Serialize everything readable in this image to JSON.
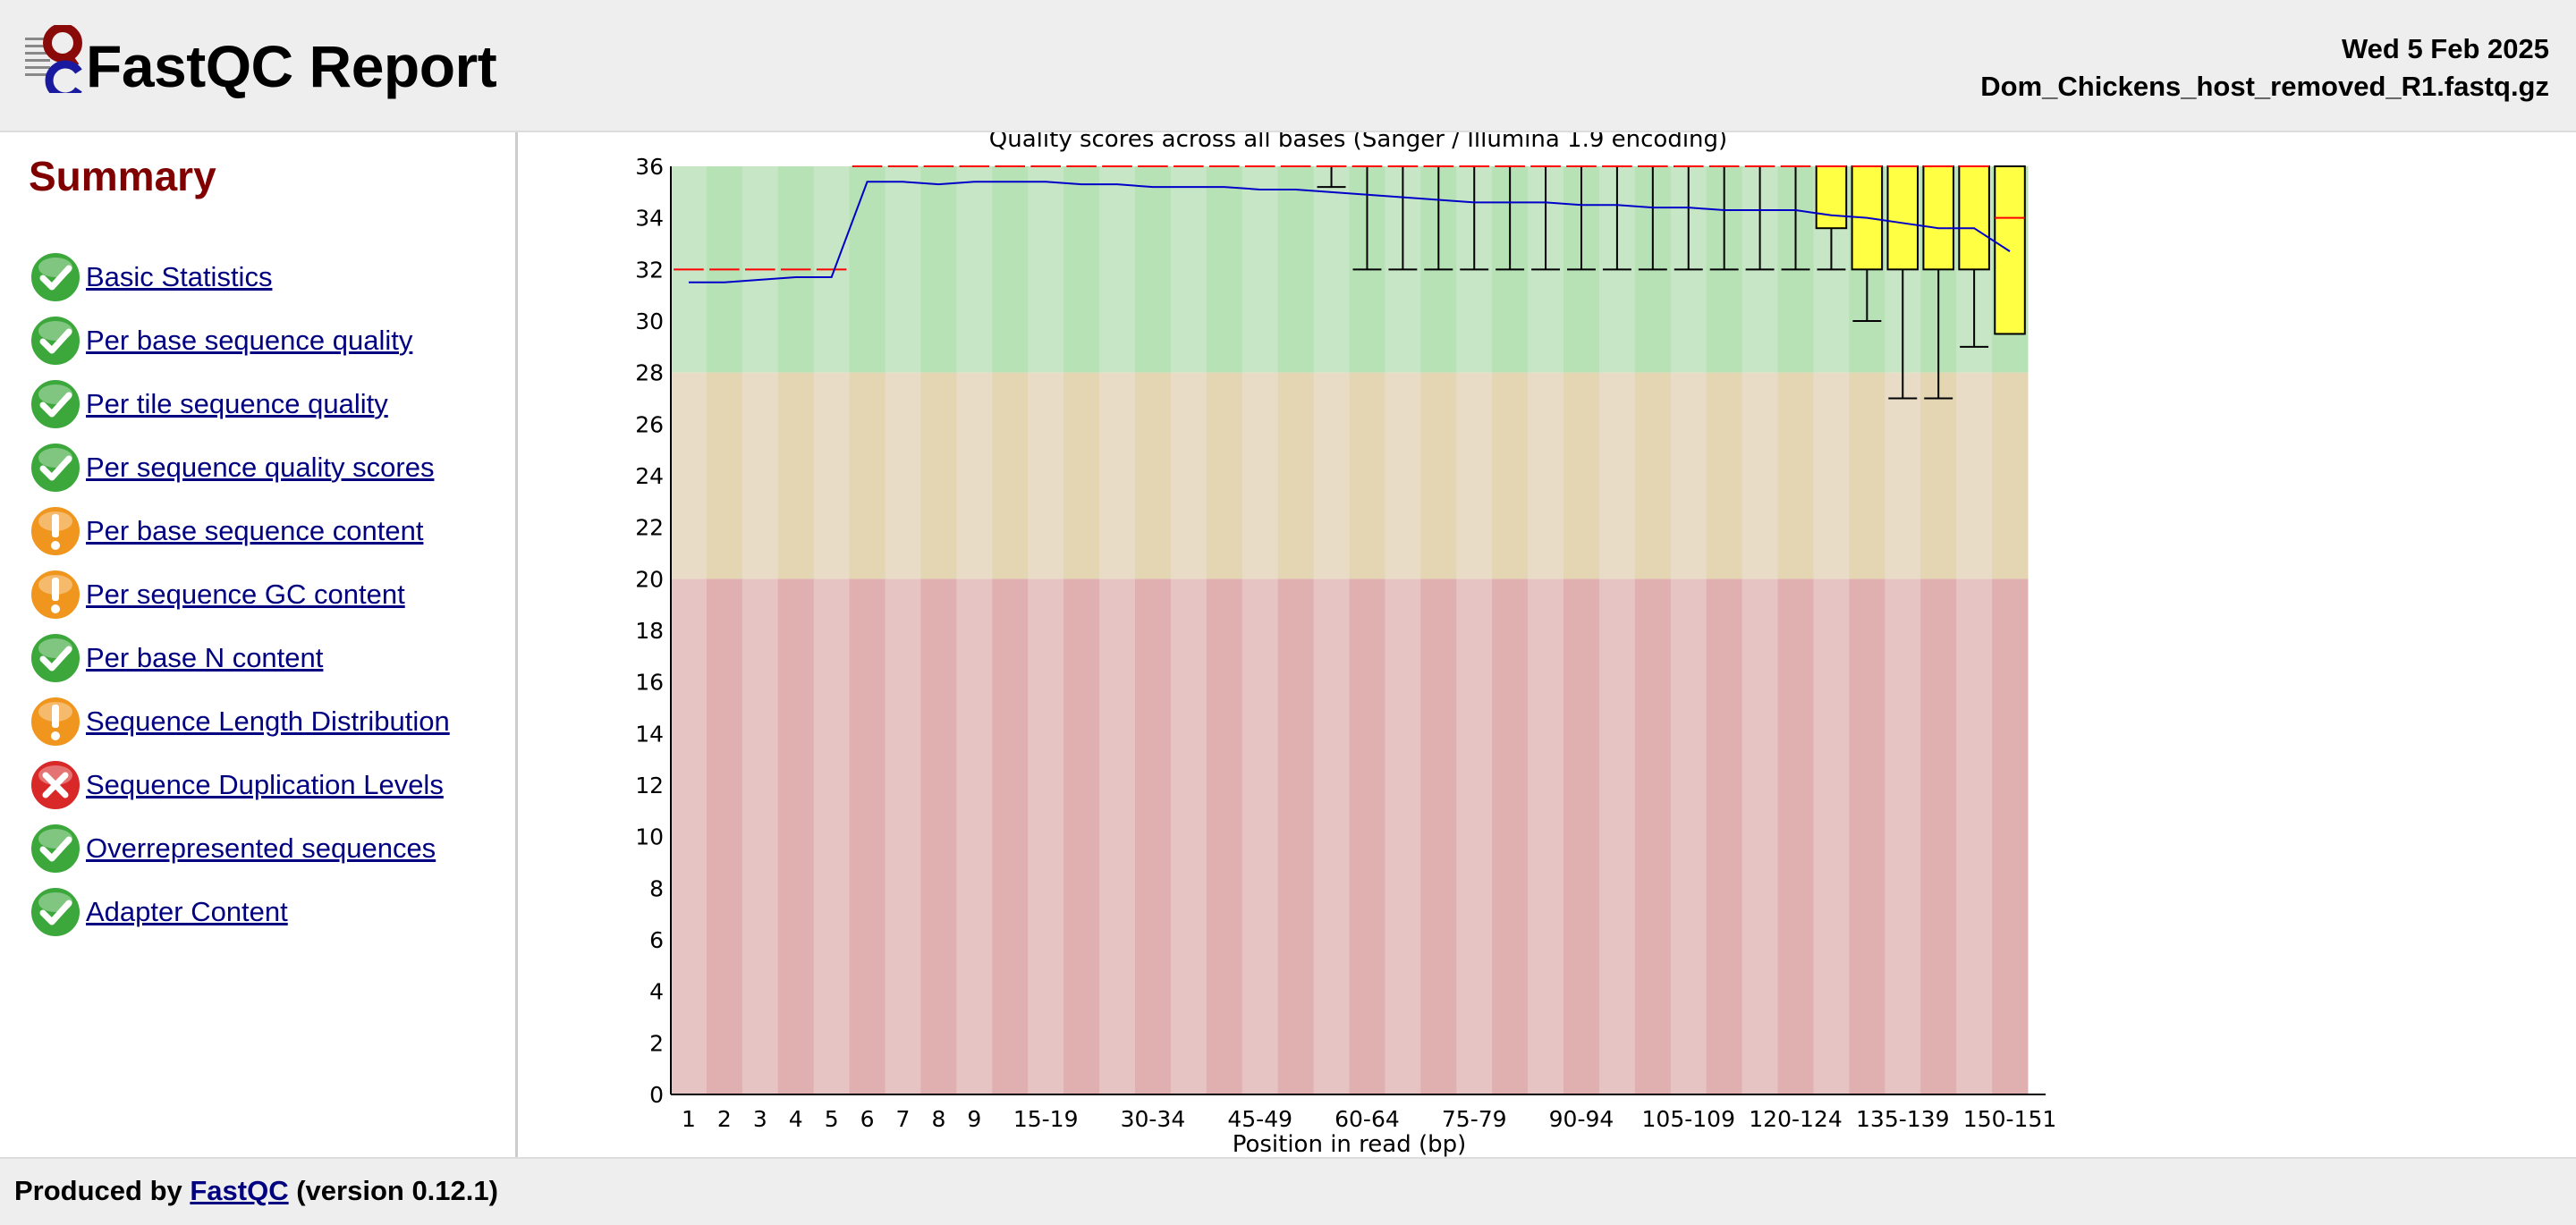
{
  "header": {
    "title": "FastQC Report",
    "date": "Wed 5 Feb 2025",
    "filename": "Dom_Chickens_host_removed_R1.fastq.gz"
  },
  "sidebar": {
    "heading": "Summary",
    "modules": [
      {
        "label": "Basic Statistics",
        "status": "pass"
      },
      {
        "label": "Per base sequence quality",
        "status": "pass"
      },
      {
        "label": "Per tile sequence quality",
        "status": "pass"
      },
      {
        "label": "Per sequence quality scores",
        "status": "pass"
      },
      {
        "label": "Per base sequence content",
        "status": "warn"
      },
      {
        "label": "Per sequence GC content",
        "status": "warn"
      },
      {
        "label": "Per base N content",
        "status": "pass"
      },
      {
        "label": "Sequence Length Distribution",
        "status": "warn"
      },
      {
        "label": "Sequence Duplication Levels",
        "status": "fail"
      },
      {
        "label": "Overrepresented sequences",
        "status": "pass"
      },
      {
        "label": "Adapter Content",
        "status": "pass"
      }
    ]
  },
  "footer": {
    "prefix": "Produced by ",
    "link": "FastQC",
    "suffix": " (version 0.12.1)"
  },
  "colors": {
    "pass": "#3ca83c",
    "warn": "#f0961e",
    "fail": "#d82828",
    "zone_good": [
      "#c6e6c6",
      "#b6e2b6"
    ],
    "zone_mid": [
      "#e8dcc6",
      "#e4d6b2"
    ],
    "zone_bad": [
      "#e6c4c4",
      "#e0b0b0"
    ],
    "box": "#ffff44",
    "mean_line": "#0000c8",
    "median": "#ff0000"
  },
  "chart_data": {
    "type": "box",
    "title": "Quality scores across all bases (Sanger / Illumina 1.9 encoding)",
    "xlabel": "Position in read (bp)",
    "ylabel": "",
    "ylim": [
      0,
      36
    ],
    "yticks": [
      0,
      2,
      4,
      6,
      8,
      10,
      12,
      14,
      16,
      18,
      20,
      22,
      24,
      26,
      28,
      30,
      32,
      34,
      36
    ],
    "zones": [
      {
        "from": 28,
        "to": 36,
        "name": "good"
      },
      {
        "from": 20,
        "to": 28,
        "name": "mid"
      },
      {
        "from": 0,
        "to": 20,
        "name": "bad"
      }
    ],
    "categories": [
      "1",
      "2",
      "3",
      "4",
      "5",
      "6",
      "7",
      "8",
      "9",
      "10-14",
      "15-19",
      "20-24",
      "25-29",
      "30-34",
      "35-39",
      "40-44",
      "45-49",
      "50-54",
      "55-59",
      "60-64",
      "65-69",
      "70-74",
      "75-79",
      "80-84",
      "85-89",
      "90-94",
      "95-99",
      "100-104",
      "105-109",
      "110-114",
      "115-119",
      "120-124",
      "125-129",
      "130-134",
      "135-139",
      "140-144",
      "145-149",
      "150-151"
    ],
    "xtick_labels": [
      "1",
      "2",
      "3",
      "4",
      "5",
      "6",
      "7",
      "8",
      "9",
      "15-19",
      "30-34",
      "45-49",
      "60-64",
      "75-79",
      "90-94",
      "105-109",
      "120-124",
      "135-139",
      "150-151"
    ],
    "mean": [
      31.5,
      31.5,
      31.6,
      31.7,
      31.7,
      35.4,
      35.4,
      35.3,
      35.4,
      35.4,
      35.4,
      35.3,
      35.3,
      35.2,
      35.2,
      35.2,
      35.1,
      35.1,
      35.0,
      34.9,
      34.8,
      34.7,
      34.6,
      34.6,
      34.6,
      34.5,
      34.5,
      34.4,
      34.4,
      34.3,
      34.3,
      34.3,
      34.1,
      34.0,
      33.8,
      33.6,
      33.6,
      32.7
    ],
    "median": [
      32,
      32,
      32,
      32,
      32,
      36,
      36,
      36,
      36,
      36,
      36,
      36,
      36,
      36,
      36,
      36,
      36,
      36,
      36,
      36,
      36,
      36,
      36,
      36,
      36,
      36,
      36,
      36,
      36,
      36,
      36,
      36,
      36,
      36,
      36,
      36,
      36,
      34
    ],
    "q1": [
      32,
      32,
      32,
      32,
      32,
      36,
      36,
      36,
      36,
      36,
      36,
      36,
      36,
      36,
      36,
      36,
      36,
      36,
      36,
      36,
      36,
      36,
      36,
      36,
      36,
      36,
      36,
      36,
      36,
      36,
      36,
      36,
      33.6,
      32,
      32,
      32,
      32,
      29.5
    ],
    "q3": [
      32,
      32,
      32,
      32,
      32,
      36,
      36,
      36,
      36,
      36,
      36,
      36,
      36,
      36,
      36,
      36,
      36,
      36,
      36,
      36,
      36,
      36,
      36,
      36,
      36,
      36,
      36,
      36,
      36,
      36,
      36,
      36,
      36,
      36,
      36,
      36,
      36,
      36
    ],
    "lower_whisker": [
      32,
      32,
      32,
      32,
      32,
      36,
      36,
      36,
      36,
      36,
      36,
      36,
      36,
      36,
      36,
      36,
      36,
      36,
      35.2,
      32,
      32,
      32,
      32,
      32,
      32,
      32,
      32,
      32,
      32,
      32,
      32,
      32,
      32,
      30,
      27,
      27,
      29,
      29.5
    ],
    "upper_whisker": [
      32,
      32,
      32,
      32,
      32,
      36,
      36,
      36,
      36,
      36,
      36,
      36,
      36,
      36,
      36,
      36,
      36,
      36,
      36,
      36,
      36,
      36,
      36,
      36,
      36,
      36,
      36,
      36,
      36,
      36,
      36,
      36,
      36,
      36,
      36,
      36,
      36,
      36
    ]
  }
}
